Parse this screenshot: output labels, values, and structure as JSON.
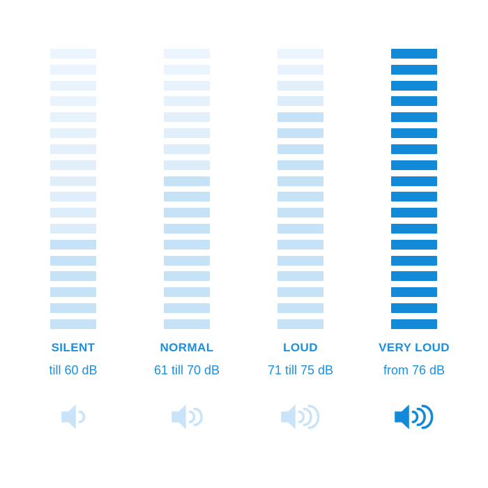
{
  "colors": {
    "background": "#ffffff",
    "text": "#1b8fe0",
    "pale_top": "#ecf5fd",
    "pale_bottom": "#dcecf9",
    "medium_fill": "#c6e2f7",
    "full_fill": "#128ad8",
    "icon_light": "#c9e4f8"
  },
  "chart_data": {
    "type": "bar",
    "title": "",
    "categories": [
      "SILENT",
      "NORMAL",
      "LOUD",
      "VERY LOUD"
    ],
    "ranges_db": [
      "till 60 dB",
      "61 till 70 dB",
      "71 till 75 dB",
      "from 76 dB"
    ],
    "segments_total": 18,
    "series": [
      {
        "name": "filled_segments_from_bottom",
        "values": [
          6,
          10,
          14,
          18
        ]
      }
    ],
    "ylim": [
      0,
      18
    ],
    "legend_position": "none",
    "grid": false
  },
  "columns": [
    {
      "name": "SILENT",
      "range": "till 60 dB",
      "waves": 1,
      "segments_total": 18,
      "segments_filled": 6,
      "fill_color": "#c6e2f7",
      "icon_color": "#c9e4f8",
      "icon": "speaker-1-wave-icon"
    },
    {
      "name": "NORMAL",
      "range": "61 till 70 dB",
      "waves": 2,
      "segments_total": 18,
      "segments_filled": 10,
      "fill_color": "#c6e2f7",
      "icon_color": "#c9e4f8",
      "icon": "speaker-2-waves-icon"
    },
    {
      "name": "LOUD",
      "range": "71 till 75 dB",
      "waves": 3,
      "segments_total": 18,
      "segments_filled": 14,
      "fill_color": "#c6e2f7",
      "icon_color": "#c9e4f8",
      "icon": "speaker-3-waves-icon"
    },
    {
      "name": "VERY LOUD",
      "range": "from 76 dB",
      "waves": 3,
      "segments_total": 18,
      "segments_filled": 18,
      "fill_color": "#128ad8",
      "icon_color": "#128ad8",
      "icon": "speaker-3-waves-bold-icon"
    }
  ]
}
